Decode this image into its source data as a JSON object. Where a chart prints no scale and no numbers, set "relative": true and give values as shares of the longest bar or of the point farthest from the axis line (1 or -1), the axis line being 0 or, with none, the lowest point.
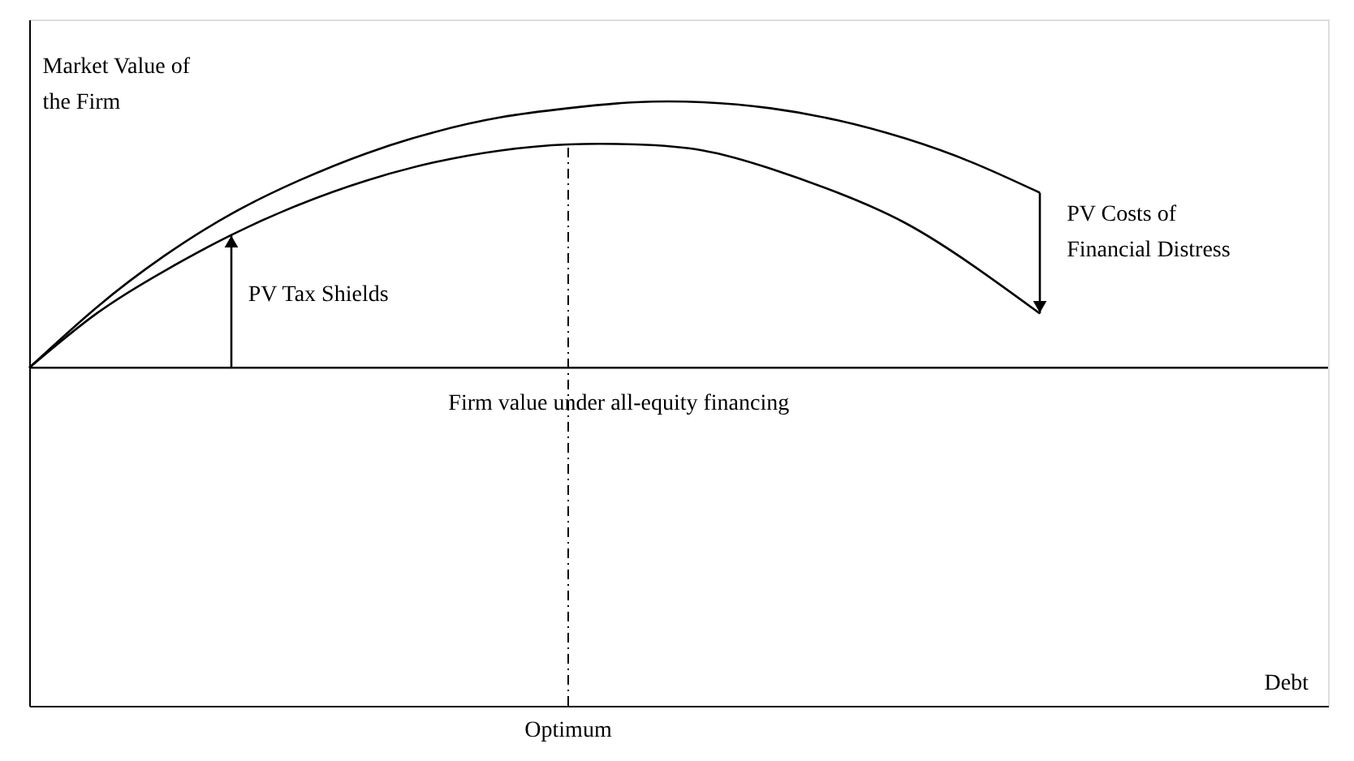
{
  "chart_data": {
    "type": "line",
    "relative": true,
    "ylabel": "Market Value of the Firm",
    "categories": [
      null,
      null,
      null,
      null,
      null,
      null,
      null,
      null,
      null,
      null,
      null,
      null,
      null,
      null,
      null,
      null
    ],
    "series": [
      {
        "color": "#000000",
        "values": [
          0.56,
          0.66,
          0.745,
          0.815,
          0.87,
          0.915,
          0.95,
          0.975,
          0.99,
          1.0,
          1.0,
          0.99,
          0.97,
          0.94,
          0.9,
          0.85
        ]
      },
      {
        "color": "#000000",
        "values": [
          0.56,
          0.65,
          0.72,
          0.78,
          0.83,
          0.87,
          0.9,
          0.92,
          0.93,
          0.93,
          0.92,
          0.89,
          0.85,
          0.8,
          0.73,
          0.65
        ]
      }
    ],
    "ref_lines": [
      {
        "axis": "y",
        "value": 0.56,
        "label": "Firm value under all-equity financing",
        "color": "#000000",
        "line_style": "solid"
      }
    ],
    "annotations": [
      "PV Tax Shields",
      "PV Costs of Financial Distress",
      "Optimum",
      "Debt"
    ],
    "grid": false,
    "marker": "none",
    "line_style": "solid"
  }
}
